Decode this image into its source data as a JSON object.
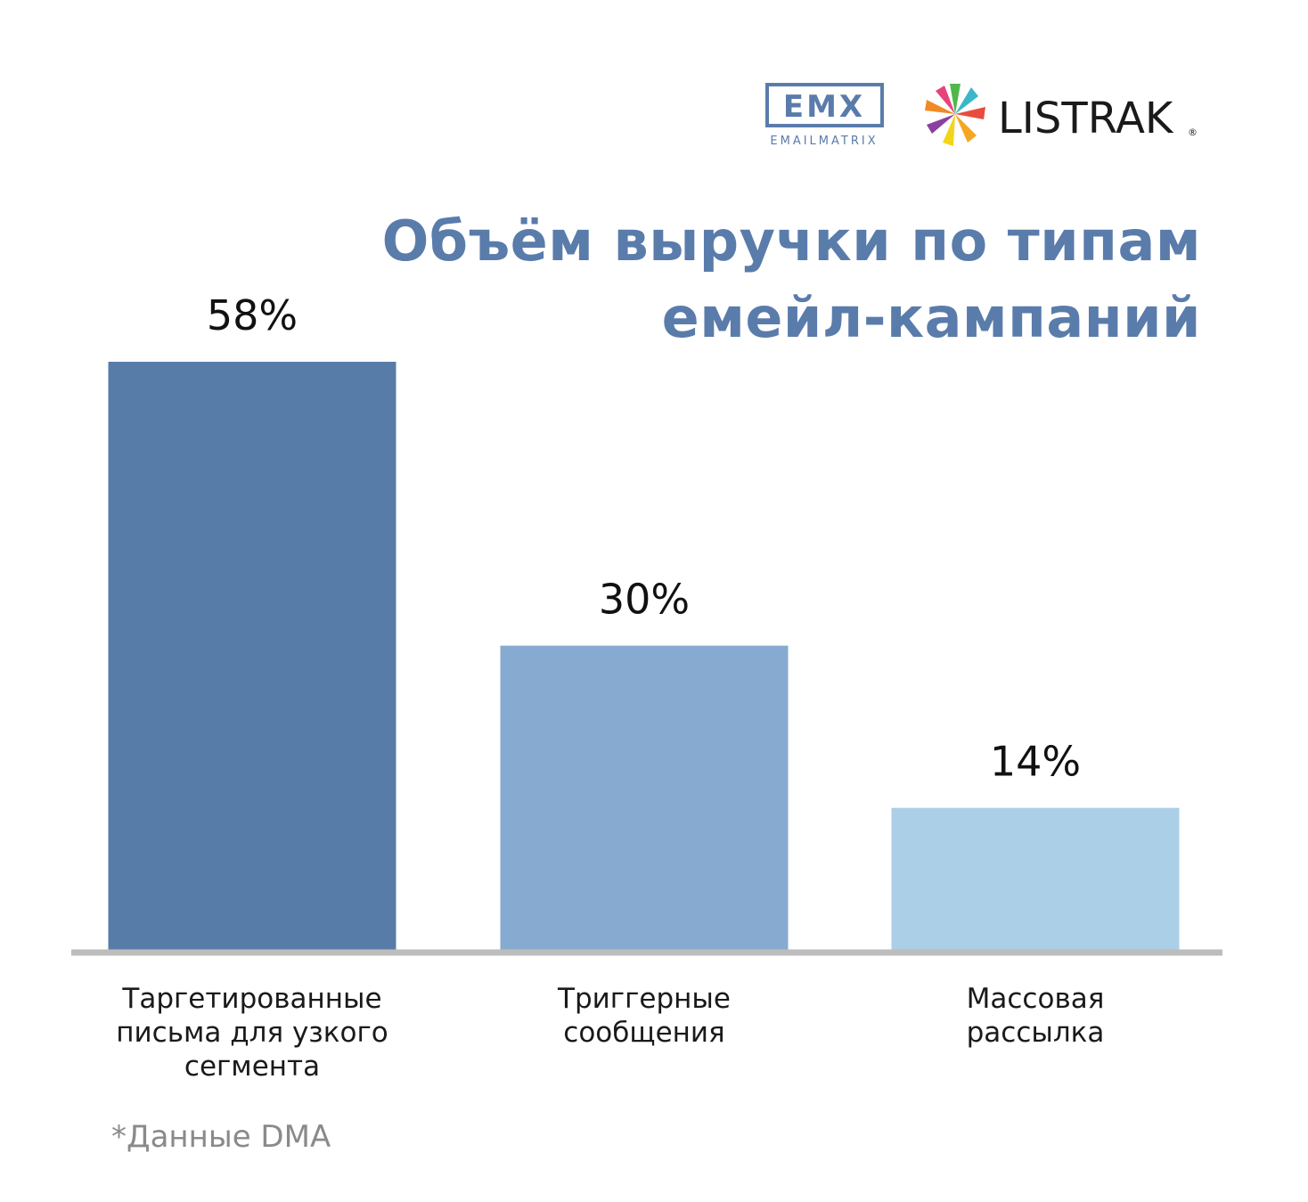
{
  "logos": {
    "emx_mark": "EMX",
    "emx_caption": "EMAILMATRIX",
    "listrak_wordmark": "LISTRAK",
    "listrak_registered": "®"
  },
  "chart_data": {
    "type": "bar",
    "title_lines": [
      "Объём выручки по типам",
      "емейл-кампаний"
    ],
    "categories": [
      [
        "Таргетированные",
        "письма для узкого",
        "сегмента"
      ],
      [
        "Триггерные",
        "сообщения"
      ],
      [
        "Массовая",
        "рассылка"
      ]
    ],
    "values": [
      58,
      30,
      14
    ],
    "value_labels": [
      "58%",
      "30%",
      "14%"
    ],
    "colors": [
      "#587ca8",
      "#87abd0",
      "#aacfe6"
    ],
    "ylim": [
      0,
      58
    ],
    "grid": false,
    "legend": false,
    "xlabel": "",
    "ylabel": ""
  },
  "footnote": "*Данные DMA"
}
